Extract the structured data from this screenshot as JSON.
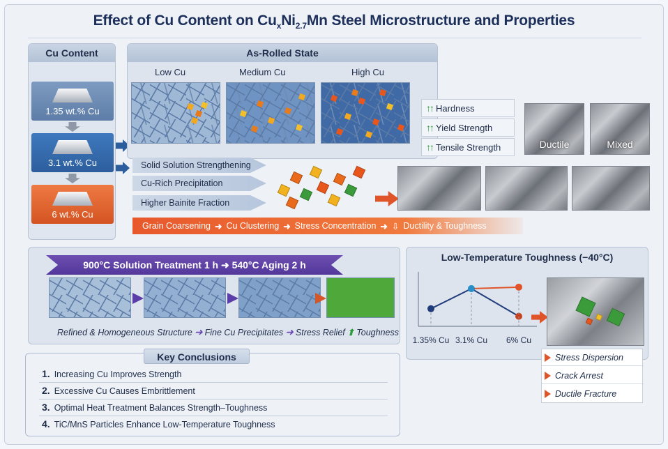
{
  "title": {
    "prefix": "Effect of Cu Content on Cu",
    "sub_x": "x",
    "mid": "Ni",
    "sub_ni": "2.7",
    "suffix": "Mn Steel Microstructure and Properties"
  },
  "cu_content": {
    "header": "Cu Content",
    "levels": [
      "1.35 wt.% Cu",
      "3.1 wt.% Cu",
      "6 wt.% Cu"
    ]
  },
  "as_rolled": {
    "header": "As-Rolled State",
    "labels": [
      "Low Cu",
      "Medium Cu",
      "High Cu"
    ]
  },
  "properties": [
    "Hardness",
    "Yield Strength",
    "Tensile Strength"
  ],
  "fracture": {
    "ductile": "Ductile",
    "mixed": "Mixed"
  },
  "mechanisms": [
    "Solid Solution Strengthening",
    "Cu-Rich Precipitation",
    "Higher Bainite Fraction"
  ],
  "chain": {
    "steps": [
      "Grain Coarsening",
      "Cu Clustering",
      "Stress Concentration"
    ],
    "result": "Ductility & Toughness"
  },
  "heat_treatment": {
    "banner_a": "900°C Solution Treatment  1 h",
    "banner_b": "540°C Aging  2 h",
    "steps": [
      "Refined & Homogeneous Structure",
      "Fine Cu Precipitates",
      "Stress Relief",
      "Toughness"
    ]
  },
  "key_conclusions": {
    "header": "Key Conclusions",
    "items": [
      {
        "num": "1.",
        "text": "Increasing Cu Improves Strength"
      },
      {
        "num": "2.",
        "text": "Excessive Cu Causes Embrittlement"
      },
      {
        "num": "3.",
        "text": "Optimal Heat Treatment Balances Strength–Toughness"
      },
      {
        "num": "4.",
        "text": "TiC/MnS Particles Enhance Low-Temperature Toughness"
      }
    ]
  },
  "low_temp": {
    "title": "Low-Temperature Toughness (−40°C)",
    "categories": [
      "1.35% Cu",
      "3.1% Cu",
      "6% Cu"
    ],
    "mechanisms": [
      "Stress Dispersion",
      "Crack Arrest",
      "Ductile Fracture"
    ]
  },
  "chart_data": {
    "type": "line",
    "title": "Low-Temperature Toughness (−40°C)",
    "categories": [
      "1.35% Cu",
      "3.1% Cu",
      "6% Cu"
    ],
    "series": [
      {
        "values": [
          0.35,
          0.75,
          0.2
        ],
        "color": "#1f3d7a"
      },
      {
        "values": [
          null,
          0.75,
          0.78
        ],
        "color": "#e0542a"
      }
    ],
    "grid": false
  },
  "colors": {
    "accent_blue": "#2c5e9e",
    "accent_orange": "#e8582b",
    "accent_purple": "#5b3ca8",
    "accent_green": "#2f9a3a"
  }
}
